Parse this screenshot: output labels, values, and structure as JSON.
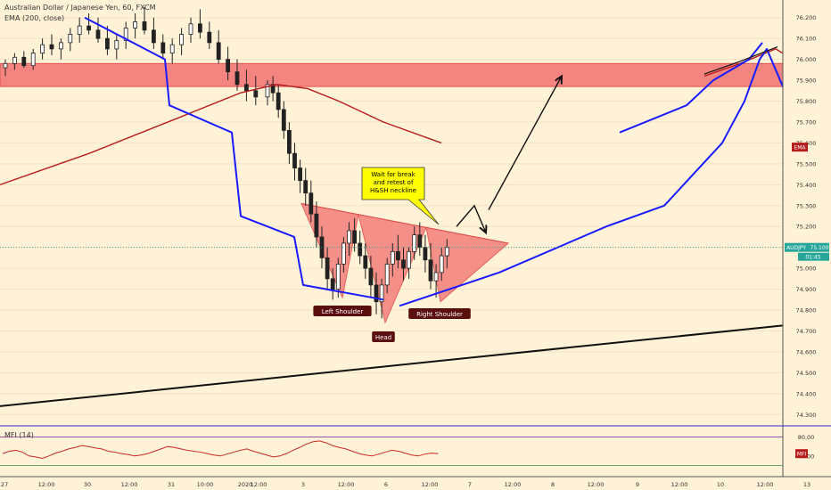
{
  "header": {
    "title": "Australian Dollar / Japanese Yen, 60, FXCM",
    "indicator": "EMA (200, close)"
  },
  "chart_data": {
    "type": "candlestick",
    "symbol": "AUDJPY",
    "timeframe": "60",
    "price_axis": {
      "ticks": [
        "76.200",
        "76.100",
        "76.000",
        "75.900",
        "75.800",
        "75.700",
        "75.600",
        "75.500",
        "75.400",
        "75.300",
        "75.200",
        "75.100",
        "75.000",
        "74.900",
        "74.800",
        "74.700",
        "74.600",
        "74.500",
        "74.400",
        "74.300"
      ],
      "ylim": [
        74.28,
        76.25
      ]
    },
    "last_price": {
      "label": "AUDJPY",
      "value": "75.100",
      "countdown": "01:45"
    },
    "ema_badge": {
      "label": "EMA",
      "value": 75.58
    },
    "time_axis": [
      "27",
      "12:00",
      "30",
      "12:00",
      "31",
      "10:00",
      "2020",
      "12:00",
      "3",
      "12:00",
      "6",
      "12:00",
      "7",
      "12:00",
      "8",
      "12:00",
      "9",
      "12:00",
      "10",
      "12:00",
      "13"
    ],
    "candles": [
      [
        75.96,
        76.0,
        75.92,
        75.98
      ],
      [
        75.98,
        76.03,
        75.95,
        76.01
      ],
      [
        76.01,
        76.04,
        75.96,
        75.97
      ],
      [
        75.97,
        76.05,
        75.95,
        76.03
      ],
      [
        76.03,
        76.1,
        76.0,
        76.07
      ],
      [
        76.07,
        76.12,
        76.02,
        76.05
      ],
      [
        76.05,
        76.1,
        76.0,
        76.08
      ],
      [
        76.08,
        76.15,
        76.04,
        76.12
      ],
      [
        76.12,
        76.2,
        76.08,
        76.16
      ],
      [
        76.16,
        76.22,
        76.12,
        76.14
      ],
      [
        76.14,
        76.2,
        76.08,
        76.1
      ],
      [
        76.1,
        76.16,
        76.02,
        76.05
      ],
      [
        76.05,
        76.12,
        76.0,
        76.09
      ],
      [
        76.09,
        76.18,
        76.05,
        76.15
      ],
      [
        76.15,
        76.22,
        76.1,
        76.18
      ],
      [
        76.18,
        76.25,
        76.12,
        76.14
      ],
      [
        76.14,
        76.2,
        76.05,
        76.08
      ],
      [
        76.08,
        76.12,
        76.0,
        76.03
      ],
      [
        76.03,
        76.1,
        75.98,
        76.07
      ],
      [
        76.07,
        76.15,
        76.02,
        76.12
      ],
      [
        76.12,
        76.2,
        76.08,
        76.17
      ],
      [
        76.17,
        76.24,
        76.1,
        76.13
      ],
      [
        76.13,
        76.18,
        76.05,
        76.08
      ],
      [
        76.08,
        76.14,
        75.98,
        76.0
      ],
      [
        76.0,
        76.06,
        75.9,
        75.94
      ],
      [
        75.94,
        76.0,
        75.85,
        75.88
      ],
      [
        75.88,
        75.95,
        75.8,
        75.85
      ],
      [
        75.85,
        75.92,
        75.78,
        75.82
      ],
      [
        75.82,
        75.9,
        75.78,
        75.88
      ],
      [
        75.88,
        75.92,
        75.8,
        75.84
      ],
      [
        75.84,
        75.88,
        75.72,
        75.76
      ],
      [
        75.76,
        75.8,
        75.62,
        75.66
      ],
      [
        75.66,
        75.7,
        75.5,
        75.55
      ],
      [
        75.55,
        75.6,
        75.42,
        75.48
      ],
      [
        75.48,
        75.52,
        75.36,
        75.42
      ],
      [
        75.42,
        75.48,
        75.3,
        75.36
      ],
      [
        75.36,
        75.42,
        75.22,
        75.26
      ],
      [
        75.26,
        75.32,
        75.1,
        75.15
      ],
      [
        75.15,
        75.2,
        75.0,
        75.05
      ],
      [
        75.05,
        75.1,
        74.9,
        74.95
      ],
      [
        74.95,
        75.0,
        74.85,
        74.9
      ],
      [
        74.9,
        75.05,
        74.86,
        75.02
      ],
      [
        75.02,
        75.15,
        74.98,
        75.12
      ],
      [
        75.12,
        75.22,
        75.06,
        75.18
      ],
      [
        75.18,
        75.24,
        75.08,
        75.12
      ],
      [
        75.12,
        75.18,
        75.02,
        75.06
      ],
      [
        75.06,
        75.12,
        74.95,
        75.0
      ],
      [
        75.0,
        75.06,
        74.86,
        74.92
      ],
      [
        74.92,
        74.98,
        74.78,
        74.84
      ],
      [
        74.84,
        74.95,
        74.76,
        74.92
      ],
      [
        74.92,
        75.05,
        74.88,
        75.02
      ],
      [
        75.02,
        75.12,
        74.96,
        75.08
      ],
      [
        75.08,
        75.16,
        75.0,
        75.04
      ],
      [
        75.04,
        75.1,
        74.94,
        75.0
      ],
      [
        75.0,
        75.1,
        74.95,
        75.08
      ],
      [
        75.08,
        75.2,
        75.04,
        75.16
      ],
      [
        75.16,
        75.22,
        75.06,
        75.1
      ],
      [
        75.1,
        75.16,
        74.98,
        75.04
      ],
      [
        75.04,
        75.12,
        74.9,
        74.94
      ],
      [
        74.94,
        75.02,
        74.86,
        74.98
      ],
      [
        74.98,
        75.1,
        74.94,
        75.06
      ],
      [
        75.06,
        75.14,
        75.0,
        75.1
      ]
    ],
    "ema200": [
      [
        0,
        75.4
      ],
      [
        100,
        75.55
      ],
      [
        200,
        75.72
      ],
      [
        270,
        75.84
      ],
      [
        310,
        75.88
      ],
      [
        345,
        75.86
      ],
      [
        380,
        75.8
      ],
      [
        430,
        75.7
      ],
      [
        495,
        75.6
      ]
    ],
    "blue_curve_left": [
      [
        95,
        76.2
      ],
      [
        185,
        76.0
      ],
      [
        190,
        75.78
      ],
      [
        260,
        75.65
      ],
      [
        270,
        75.25
      ],
      [
        330,
        75.15
      ],
      [
        340,
        74.92
      ],
      [
        430,
        74.85
      ]
    ],
    "blue_curve_right": [
      [
        448,
        74.82
      ],
      [
        560,
        74.98
      ],
      [
        680,
        75.2
      ],
      [
        745,
        75.3
      ],
      [
        810,
        75.6
      ],
      [
        835,
        75.8
      ],
      [
        852,
        76.0
      ],
      [
        860,
        76.05
      ],
      [
        880,
        75.85
      ],
      [
        898,
        75.65
      ]
    ],
    "blue_curve_top": [
      [
        695,
        75.65
      ],
      [
        770,
        75.78
      ],
      [
        800,
        75.9
      ],
      [
        840,
        76.0
      ],
      [
        855,
        76.08
      ]
    ],
    "ema_future": [
      [
        790,
        75.92
      ],
      [
        830,
        75.98
      ],
      [
        870,
        76.05
      ],
      [
        905,
        75.96
      ]
    ],
    "resistance_zone": [
      75.87,
      75.98
    ],
    "trendline": [
      [
        0,
        74.34
      ],
      [
        932,
        74.75
      ]
    ],
    "pattern": {
      "left_shoulder_low": 74.86,
      "head_low": 74.74,
      "right_shoulder_low": 74.84,
      "neckline": [
        [
          338,
          75.31
        ],
        [
          570,
          75.12
        ]
      ]
    },
    "annotations": {
      "callout": "Wait for break\nand retest of\nH&SH neckline",
      "left_shoulder": "Left Shoulder",
      "head": "Head",
      "right_shoulder": "Right Shoulder"
    },
    "mfi": {
      "label": "MFI (14)",
      "ticks": [
        "80.00",
        "40.00"
      ],
      "badge": "MFI",
      "values": [
        45,
        50,
        52,
        48,
        40,
        38,
        35,
        40,
        46,
        50,
        55,
        58,
        62,
        60,
        57,
        55,
        50,
        48,
        45,
        43,
        40,
        42,
        45,
        50,
        55,
        60,
        58,
        55,
        52,
        50,
        48,
        45,
        42,
        40,
        44,
        48,
        52,
        55,
        50,
        46,
        42,
        38,
        40,
        45,
        52,
        58,
        65,
        70,
        72,
        68,
        62,
        58,
        55,
        50,
        45,
        42,
        40,
        44,
        48,
        52,
        50,
        46,
        42,
        40,
        44,
        46,
        45
      ]
    }
  }
}
